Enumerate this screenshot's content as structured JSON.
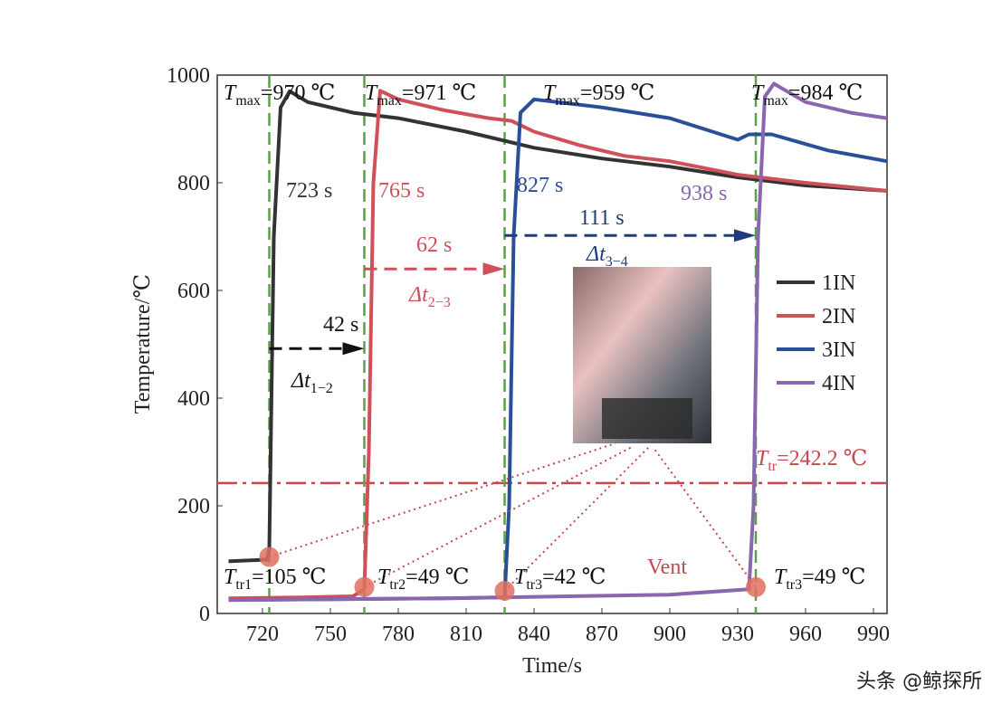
{
  "chart_data": {
    "type": "line",
    "xlabel": "Time/s",
    "ylabel": "Temperature/℃",
    "xlim": [
      700,
      996
    ],
    "ylim": [
      0,
      1000
    ],
    "xticks": [
      720,
      750,
      780,
      810,
      840,
      870,
      900,
      930,
      960,
      990
    ],
    "yticks": [
      0,
      200,
      400,
      600,
      800,
      1000
    ],
    "legend": "right",
    "series": [
      {
        "name": "1IN",
        "color": "#333333",
        "x": [
          705,
          722,
          723,
          725,
          728,
          732,
          740,
          760,
          780,
          810,
          840,
          870,
          900,
          930,
          960,
          996
        ],
        "values": [
          97,
          100,
          120,
          700,
          940,
          970,
          950,
          930,
          920,
          895,
          865,
          845,
          830,
          810,
          795,
          785
        ]
      },
      {
        "name": "2IN",
        "color": "#d0505a",
        "x": [
          705,
          740,
          760,
          765,
          767,
          769,
          772,
          780,
          800,
          820,
          830,
          840,
          860,
          880,
          900,
          930,
          960,
          996
        ],
        "values": [
          28,
          30,
          32,
          45,
          300,
          800,
          971,
          955,
          935,
          920,
          915,
          895,
          870,
          850,
          840,
          815,
          800,
          785
        ]
      },
      {
        "name": "3IN",
        "color": "#2b4f96",
        "x": [
          705,
          800,
          827,
          829,
          831,
          834,
          840,
          870,
          900,
          930,
          935,
          945,
          970,
          996
        ],
        "values": [
          25,
          28,
          30,
          200,
          700,
          930,
          955,
          940,
          920,
          880,
          890,
          890,
          860,
          840
        ]
      },
      {
        "name": "4IN",
        "color": "#8a66ae",
        "x": [
          705,
          800,
          900,
          935,
          937,
          939,
          942,
          946,
          960,
          980,
          996
        ],
        "values": [
          25,
          28,
          35,
          45,
          200,
          700,
          960,
          984,
          950,
          930,
          920
        ]
      }
    ],
    "vlines": [
      723,
      765,
      827,
      938
    ],
    "threshold": {
      "value": 242.2,
      "label": {
        "symbol": "T",
        "sub": "tr",
        "text": "=242.2 ℃"
      }
    },
    "transition_points": [
      {
        "x": 723,
        "y": 105
      },
      {
        "x": 765,
        "y": 49
      },
      {
        "x": 827,
        "y": 42
      },
      {
        "x": 938,
        "y": 49
      }
    ],
    "tmax_labels": [
      {
        "symbol": "T",
        "sub": "max",
        "text": "=970 ℃"
      },
      {
        "symbol": "T",
        "sub": "max",
        "text": "=971 ℃"
      },
      {
        "symbol": "T",
        "sub": "max",
        "text": "=959 ℃"
      },
      {
        "symbol": "T",
        "sub": "max",
        "text": "=984 ℃"
      }
    ],
    "ttr_labels": [
      {
        "symbol": "T",
        "sub": "tr1",
        "text": "=105 ℃"
      },
      {
        "symbol": "T",
        "sub": "tr2",
        "text": "=49 ℃"
      },
      {
        "symbol": "T",
        "sub": "tr3",
        "text": "=42 ℃"
      },
      {
        "symbol": "T",
        "sub": "tr3",
        "text": "=49 ℃"
      }
    ],
    "time_labels": [
      "723 s",
      "765 s",
      "827 s",
      "938 s"
    ],
    "arrows": [
      {
        "from": 723,
        "to": 765,
        "y": 492,
        "label": "42 s",
        "delta": "Δt",
        "sub": "1−2",
        "color": "#111111"
      },
      {
        "from": 765,
        "to": 827,
        "y": 640,
        "label": "62 s",
        "delta": "Δt",
        "sub": "2−3",
        "color": "#d0505a"
      },
      {
        "from": 827,
        "to": 938,
        "y": 702,
        "label": "111 s",
        "delta": "Δt",
        "sub": "3−4",
        "color": "#1f3a80"
      }
    ],
    "vent_label": "Vent"
  },
  "watermark": "头条 @鲸探所"
}
